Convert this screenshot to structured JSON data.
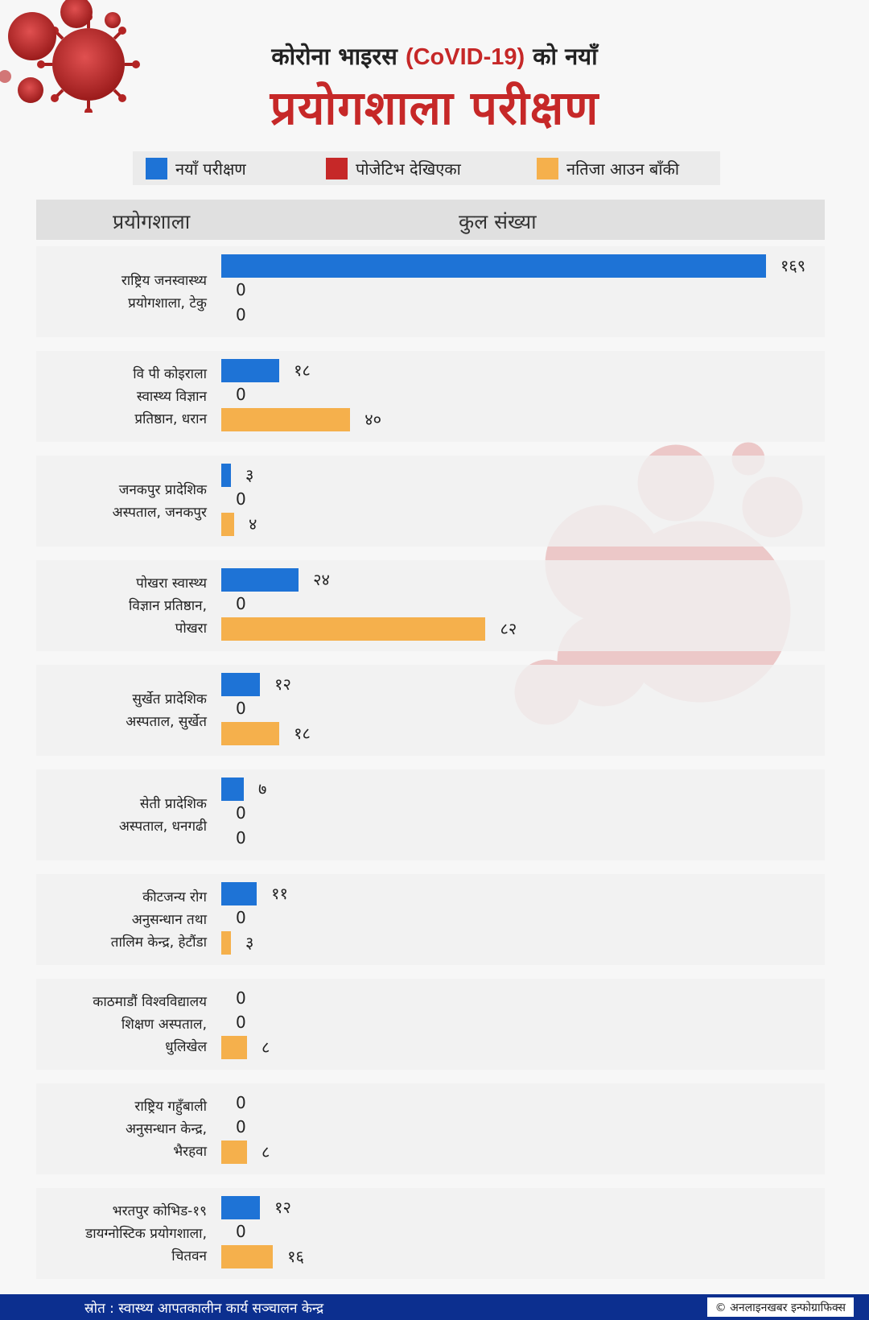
{
  "title": {
    "line1_prefix": "कोरोना भाइरस ",
    "line1_highlight": "(CoVID-19)",
    "line1_suffix": " को नयाँ",
    "line2": "प्रयोगशाला परीक्षण"
  },
  "legend": [
    {
      "label": "नयाँ परीक्षण",
      "color": "#1e73d6"
    },
    {
      "label": "पोजेटिभ देखिएका",
      "color": "#c62828"
    },
    {
      "label": "नतिजा आउन बाँकी",
      "color": "#f5b04c"
    }
  ],
  "header": {
    "col1": "प्रयोगशाला",
    "col2": "कुल संख्या"
  },
  "chart_data": {
    "type": "bar",
    "orientation": "horizontal",
    "categories": [
      [
        "राष्ट्रिय जनस्वास्थ्य",
        "प्रयोगशाला, टेकु"
      ],
      [
        "वि पी कोइराला",
        "स्वास्थ्य विज्ञान",
        "प्रतिष्ठान, धरान"
      ],
      [
        "जनकपुर प्रादेशिक",
        "अस्पताल, जनकपुर"
      ],
      [
        "पोखरा स्वास्थ्य",
        "विज्ञान प्रतिष्ठान,",
        "पोखरा"
      ],
      [
        "सुर्खेत प्रादेशिक",
        "अस्पताल, सुर्खेत"
      ],
      [
        "सेती प्रादेशिक",
        "अस्पताल, धनगढी"
      ],
      [
        "कीटजन्य रोग",
        "अनुसन्धान तथा",
        "तालिम केन्द्र, हेटौंडा"
      ],
      [
        "काठमाडौं विश्वविद्यालय",
        "शिक्षण अस्पताल,",
        "धुलिखेल"
      ],
      [
        "राष्ट्रिय गहुँबाली",
        "अनुसन्धान केन्द्र,",
        "भैरहवा"
      ],
      [
        "भरतपुर कोभिड-१९",
        "डायग्नोस्टिक प्रयोगशाला,",
        "चितवन"
      ]
    ],
    "series": [
      {
        "name": "नयाँ परीक्षण",
        "color": "#1e73d6",
        "values": [
          169,
          18,
          3,
          24,
          12,
          7,
          11,
          0,
          0,
          12
        ],
        "labels": [
          "१६९",
          "१८",
          "३",
          "२४",
          "१२",
          "७",
          "११",
          "0",
          "0",
          "१२"
        ]
      },
      {
        "name": "पोजेटिभ देखिएका",
        "color": "#c62828",
        "values": [
          0,
          0,
          0,
          0,
          0,
          0,
          0,
          0,
          0,
          0
        ],
        "labels": [
          "0",
          "0",
          "0",
          "0",
          "0",
          "0",
          "0",
          "0",
          "0",
          "0"
        ]
      },
      {
        "name": "नतिजा आउन बाँकी",
        "color": "#f5b04c",
        "values": [
          0,
          40,
          4,
          82,
          18,
          0,
          3,
          8,
          8,
          16
        ],
        "labels": [
          "0",
          "४०",
          "४",
          "८२",
          "१८",
          "0",
          "३",
          "८",
          "८",
          "१६"
        ]
      }
    ],
    "xlim": [
      0,
      169
    ],
    "grid": false,
    "legend_position": "top"
  },
  "footer": {
    "source": "स्रोत : स्वास्थ्य आपतकालीन कार्य सञ्चालन केन्द्र",
    "credit": "© अनलाइनखबर इन्फोग्राफिक्स"
  },
  "icons": [
    "virus-icon"
  ]
}
